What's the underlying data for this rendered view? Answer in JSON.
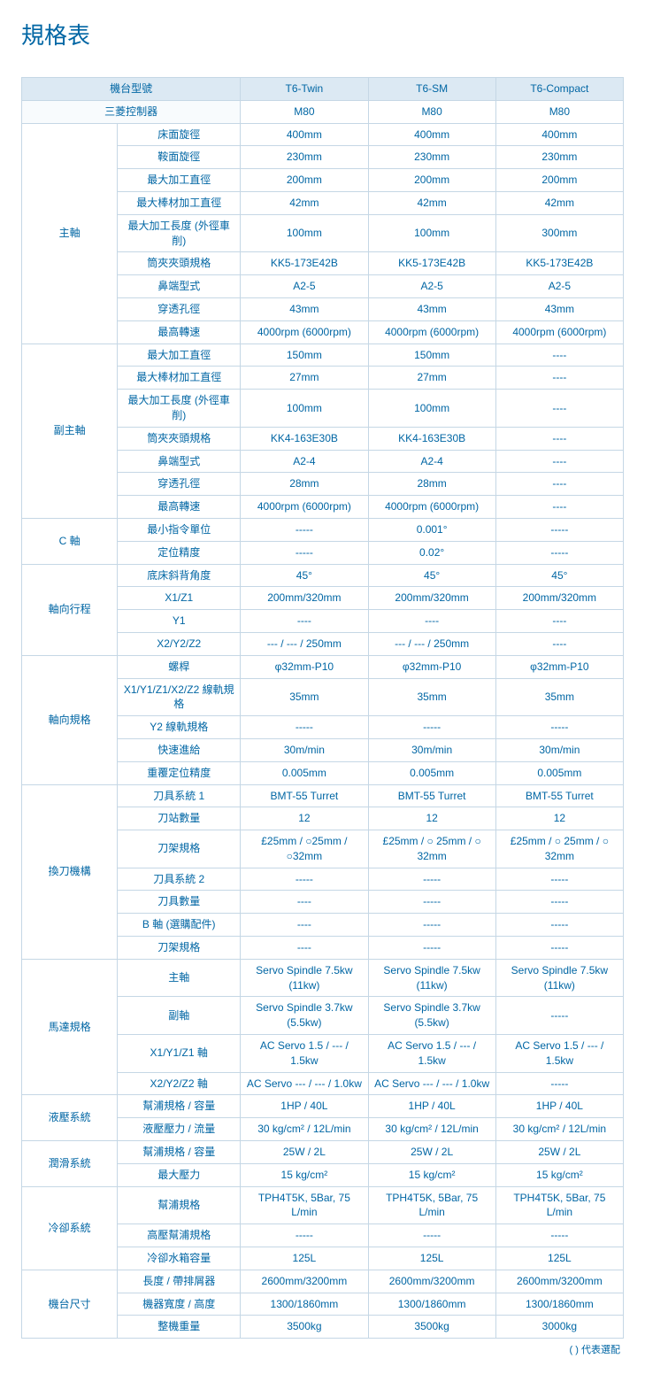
{
  "title": "規格表",
  "footnote": "( ) 代表選配",
  "header": {
    "modelHeader": "機台型號",
    "models": [
      "T6-Twin",
      "T6-SM",
      "T6-Compact"
    ]
  },
  "controllerRow": {
    "label": "三菱控制器",
    "values": [
      "M80",
      "M80",
      "M80"
    ]
  },
  "sections": [
    {
      "category": "主軸",
      "rows": [
        {
          "label": "床面旋徑",
          "values": [
            "400mm",
            "400mm",
            "400mm"
          ]
        },
        {
          "label": "鞍面旋徑",
          "values": [
            "230mm",
            "230mm",
            "230mm"
          ]
        },
        {
          "label": "最大加工直徑",
          "values": [
            "200mm",
            "200mm",
            "200mm"
          ]
        },
        {
          "label": "最大棒材加工直徑",
          "values": [
            "42mm",
            "42mm",
            "42mm"
          ]
        },
        {
          "label": "最大加工長度 (外徑車削)",
          "values": [
            "100mm",
            "100mm",
            "300mm"
          ]
        },
        {
          "label": "筒夾夾頭規格",
          "values": [
            "KK5-173E42B",
            "KK5-173E42B",
            "KK5-173E42B"
          ]
        },
        {
          "label": "鼻端型式",
          "values": [
            "A2-5",
            "A2-5",
            "A2-5"
          ]
        },
        {
          "label": "穿透孔徑",
          "values": [
            "43mm",
            "43mm",
            "43mm"
          ]
        },
        {
          "label": "最高轉速",
          "values": [
            "4000rpm (6000rpm)",
            "4000rpm (6000rpm)",
            "4000rpm (6000rpm)"
          ]
        }
      ]
    },
    {
      "category": "副主軸",
      "rows": [
        {
          "label": "最大加工直徑",
          "values": [
            "150mm",
            "150mm",
            "----"
          ]
        },
        {
          "label": "最大棒材加工直徑",
          "values": [
            "27mm",
            "27mm",
            "----"
          ]
        },
        {
          "label": "最大加工長度 (外徑車削)",
          "values": [
            "100mm",
            "100mm",
            "----"
          ]
        },
        {
          "label": "筒夾夾頭規格",
          "values": [
            "KK4-163E30B",
            "KK4-163E30B",
            "----"
          ]
        },
        {
          "label": "鼻端型式",
          "values": [
            "A2-4",
            "A2-4",
            "----"
          ]
        },
        {
          "label": "穿透孔徑",
          "values": [
            "28mm",
            "28mm",
            "----"
          ]
        },
        {
          "label": "最高轉速",
          "values": [
            "4000rpm (6000rpm)",
            "4000rpm (6000rpm)",
            "----"
          ]
        }
      ]
    },
    {
      "category": "C 軸",
      "rows": [
        {
          "label": "最小指令單位",
          "values": [
            "-----",
            "0.001°",
            "-----"
          ]
        },
        {
          "label": "定位精度",
          "values": [
            "-----",
            "0.02°",
            "-----"
          ]
        }
      ]
    },
    {
      "category": "軸向行程",
      "rows": [
        {
          "label": "底床斜背角度",
          "values": [
            "45°",
            "45°",
            "45°"
          ]
        },
        {
          "label": "X1/Z1",
          "values": [
            "200mm/320mm",
            "200mm/320mm",
            "200mm/320mm"
          ]
        },
        {
          "label": "Y1",
          "values": [
            "----",
            "----",
            "----"
          ]
        },
        {
          "label": "X2/Y2/Z2",
          "values": [
            "--- / --- / 250mm",
            "--- / --- / 250mm",
            "----"
          ]
        }
      ]
    },
    {
      "category": "軸向規格",
      "rows": [
        {
          "label": "螺桿",
          "values": [
            "φ32mm-P10",
            "φ32mm-P10",
            "φ32mm-P10"
          ]
        },
        {
          "label": "X1/Y1/Z1/X2/Z2 線軌規格",
          "values": [
            "35mm",
            "35mm",
            "35mm"
          ]
        },
        {
          "label": "Y2 線軌規格",
          "values": [
            "-----",
            "-----",
            "-----"
          ]
        },
        {
          "label": "快速進給",
          "values": [
            "30m/min",
            "30m/min",
            "30m/min"
          ]
        },
        {
          "label": "重覆定位精度",
          "values": [
            "0.005mm",
            "0.005mm",
            "0.005mm"
          ]
        }
      ]
    },
    {
      "category": "換刀機構",
      "rows": [
        {
          "label": "刀具系統 1",
          "values": [
            "BMT-55 Turret",
            "BMT-55 Turret",
            "BMT-55 Turret"
          ]
        },
        {
          "label": "刀站數量",
          "values": [
            "12",
            "12",
            "12"
          ]
        },
        {
          "label": "刀架規格",
          "values": [
            "£25mm / ○25mm / ○32mm",
            "£25mm / ○ 25mm / ○ 32mm",
            "£25mm / ○ 25mm / ○ 32mm"
          ]
        },
        {
          "label": "刀具系統 2",
          "values": [
            "-----",
            "-----",
            "-----"
          ]
        },
        {
          "label": "刀具數量",
          "values": [
            "----",
            "-----",
            "-----"
          ]
        },
        {
          "label": "B 軸 (選購配件)",
          "values": [
            "----",
            "-----",
            "-----"
          ]
        },
        {
          "label": "刀架規格",
          "values": [
            "----",
            "-----",
            "-----"
          ]
        }
      ]
    },
    {
      "category": "馬達規格",
      "rows": [
        {
          "label": "主軸",
          "values": [
            "Servo Spindle 7.5kw (11kw)",
            "Servo Spindle 7.5kw (11kw)",
            "Servo Spindle 7.5kw (11kw)"
          ]
        },
        {
          "label": "副軸",
          "values": [
            "Servo Spindle 3.7kw (5.5kw)",
            "Servo Spindle 3.7kw (5.5kw)",
            "-----"
          ]
        },
        {
          "label": "X1/Y1/Z1 軸",
          "values": [
            "AC Servo 1.5 / --- / 1.5kw",
            "AC Servo 1.5 / --- / 1.5kw",
            "AC Servo 1.5 / --- / 1.5kw"
          ]
        },
        {
          "label": "X2/Y2/Z2 軸",
          "values": [
            "AC Servo --- / --- / 1.0kw",
            "AC Servo --- / --- / 1.0kw",
            "-----"
          ]
        }
      ]
    },
    {
      "category": "液壓系統",
      "rows": [
        {
          "label": "幫浦規格 / 容量",
          "values": [
            "1HP / 40L",
            "1HP / 40L",
            "1HP / 40L"
          ]
        },
        {
          "label": "液壓壓力 / 流量",
          "values": [
            "30 kg/cm²  / 12L/min",
            "30 kg/cm²  / 12L/min",
            "30 kg/cm²  / 12L/min"
          ]
        }
      ]
    },
    {
      "category": "潤滑系統",
      "rows": [
        {
          "label": "幫浦規格 / 容量",
          "values": [
            "25W / 2L",
            "25W / 2L",
            "25W / 2L"
          ]
        },
        {
          "label": "最大壓力",
          "values": [
            "15 kg/cm²",
            "15 kg/cm²",
            "15 kg/cm²"
          ]
        }
      ]
    },
    {
      "category": "冷卻系統",
      "rows": [
        {
          "label": "幫浦規格",
          "values": [
            "TPH4T5K, 5Bar, 75 L/min",
            "TPH4T5K, 5Bar, 75 L/min",
            "TPH4T5K, 5Bar, 75 L/min"
          ]
        },
        {
          "label": "高壓幫浦規格",
          "values": [
            "-----",
            "-----",
            "-----"
          ]
        },
        {
          "label": "冷卻水箱容量",
          "values": [
            "125L",
            "125L",
            "125L"
          ]
        }
      ]
    },
    {
      "category": "機台尺寸",
      "rows": [
        {
          "label": "長度 / 帶排屑器",
          "values": [
            "2600mm/3200mm",
            "2600mm/3200mm",
            "2600mm/3200mm"
          ]
        },
        {
          "label": "機器寬度 / 高度",
          "values": [
            "1300/1860mm",
            "1300/1860mm",
            "1300/1860mm"
          ]
        },
        {
          "label": "整機重量",
          "values": [
            "3500kg",
            "3500kg",
            "3000kg"
          ]
        }
      ]
    }
  ]
}
